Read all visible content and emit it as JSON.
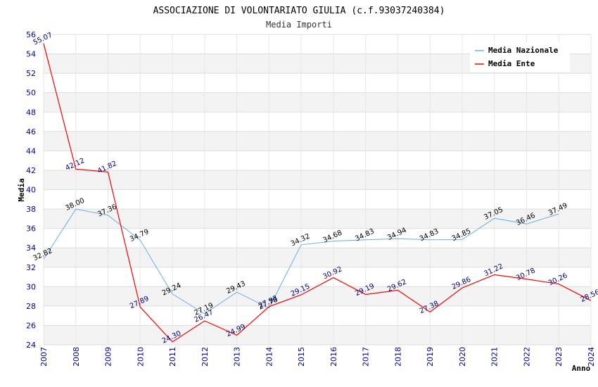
{
  "chart_data": {
    "type": "line",
    "title": "ASSOCIAZIONE DI VOLONTARIATO GIULIA (c.f.93037240384)",
    "subtitle": "Media Importi",
    "xlabel": "Anno",
    "ylabel": "Media",
    "ylim": [
      24,
      56
    ],
    "ytick_step": 2,
    "grid": true,
    "legend_position": "top-right",
    "categories": [
      "2007",
      "2008",
      "2009",
      "2010",
      "2011",
      "2012",
      "2013",
      "2014",
      "2015",
      "2016",
      "2017",
      "2018",
      "2019",
      "2020",
      "2021",
      "2022",
      "2023",
      "2024"
    ],
    "series": [
      {
        "name": "Media Nazionale",
        "color": "#6aaee8",
        "values": [
          32.82,
          38.0,
          37.36,
          34.79,
          29.24,
          27.19,
          29.43,
          27.78,
          34.32,
          34.68,
          34.83,
          34.94,
          34.83,
          34.85,
          37.05,
          36.46,
          37.49,
          null
        ],
        "labels": [
          "32.82",
          "38.00",
          "37.36",
          "34.79",
          "29.24",
          "27.19",
          "29.43",
          "27.78",
          "34.32",
          "34.68",
          "34.83",
          "34.94",
          "34.83",
          "34.85",
          "37.05",
          "36.46",
          "37.49",
          ""
        ]
      },
      {
        "name": "Media Ente",
        "color": "#ff0000",
        "values": [
          55.07,
          42.12,
          41.82,
          27.89,
          24.3,
          26.47,
          24.99,
          27.93,
          29.15,
          30.92,
          29.19,
          29.62,
          27.38,
          29.86,
          31.22,
          30.78,
          30.26,
          28.56
        ],
        "labels": [
          "55.07",
          "42.12",
          "41.82",
          "27.89",
          "24.30",
          "26.47",
          "24.99",
          "27.93",
          "29.15",
          "30.92",
          "29.19",
          "29.62",
          "27.38",
          "29.86",
          "31.22",
          "30.78",
          "30.26",
          "28.56"
        ]
      }
    ]
  }
}
